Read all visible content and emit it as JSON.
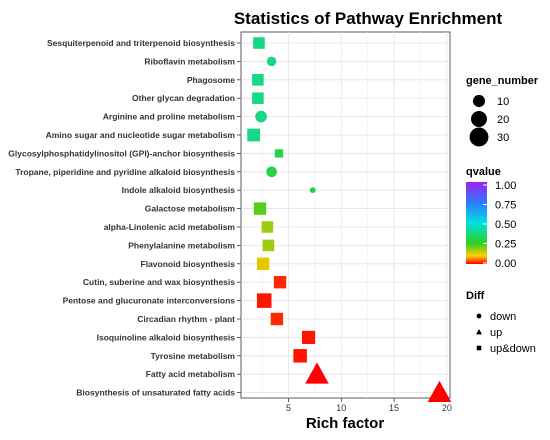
{
  "chart_data": {
    "type": "scatter",
    "title": "Statistics of Pathway Enrichment",
    "xlabel": "Rich factor",
    "ylabel": "",
    "xlim": [
      0.5,
      20.3
    ],
    "xticks": [
      "5",
      "10",
      "15",
      "20"
    ],
    "grid": true,
    "categories": [
      "Sesquiterpenoid and triterpenoid biosynthesis",
      "Riboflavin metabolism",
      "Phagosome",
      "Other glycan degradation",
      "Arginine and proline metabolism",
      "Amino sugar and nucleotide sugar metabolism",
      "Glycosylphosphatidylinositol (GPI)-anchor biosynthesis",
      "Tropane, piperidine and pyridine alkaloid biosynthesis",
      "Indole alkaloid biosynthesis",
      "Galactose metabolism",
      "alpha-Linolenic acid metabolism",
      "Phenylalanine metabolism",
      "Flavonoid biosynthesis",
      "Cutin, suberine and wax biosynthesis",
      "Pentose and glucuronate interconversions",
      "Circadian rhythm - plant",
      "Isoquinoline alkaloid biosynthesis",
      "Tyrosine metabolism",
      "Fatty acid metabolism",
      "Biosynthesis of unsaturated fatty acids"
    ],
    "points": [
      {
        "rich_factor": 2.2,
        "gene_number": 10,
        "qvalue": 0.38,
        "diff": "up&down"
      },
      {
        "rich_factor": 3.4,
        "gene_number": 5,
        "qvalue": 0.38,
        "diff": "down"
      },
      {
        "rich_factor": 2.1,
        "gene_number": 10,
        "qvalue": 0.38,
        "diff": "up&down"
      },
      {
        "rich_factor": 2.1,
        "gene_number": 10,
        "qvalue": 0.38,
        "diff": "up&down"
      },
      {
        "rich_factor": 2.4,
        "gene_number": 9,
        "qvalue": 0.38,
        "diff": "down"
      },
      {
        "rich_factor": 1.7,
        "gene_number": 13,
        "qvalue": 0.38,
        "diff": "up&down"
      },
      {
        "rich_factor": 4.1,
        "gene_number": 4,
        "qvalue": 0.3,
        "diff": "up&down"
      },
      {
        "rich_factor": 3.4,
        "gene_number": 7,
        "qvalue": 0.3,
        "diff": "down"
      },
      {
        "rich_factor": 7.3,
        "gene_number": 1,
        "qvalue": 0.3,
        "diff": "down"
      },
      {
        "rich_factor": 2.3,
        "gene_number": 12,
        "qvalue": 0.22,
        "diff": "up&down"
      },
      {
        "rich_factor": 3.0,
        "gene_number": 10,
        "qvalue": 0.17,
        "diff": "up&down"
      },
      {
        "rich_factor": 3.1,
        "gene_number": 10,
        "qvalue": 0.17,
        "diff": "up&down"
      },
      {
        "rich_factor": 2.6,
        "gene_number": 12,
        "qvalue": 0.12,
        "diff": "up&down"
      },
      {
        "rich_factor": 4.2,
        "gene_number": 12,
        "qvalue": 0.02,
        "diff": "up&down"
      },
      {
        "rich_factor": 2.7,
        "gene_number": 18,
        "qvalue": 0.01,
        "diff": "up&down"
      },
      {
        "rich_factor": 3.9,
        "gene_number": 12,
        "qvalue": 0.02,
        "diff": "up&down"
      },
      {
        "rich_factor": 6.9,
        "gene_number": 14,
        "qvalue": 0.01,
        "diff": "up&down"
      },
      {
        "rich_factor": 6.1,
        "gene_number": 15,
        "qvalue": 0.01,
        "diff": "up&down"
      },
      {
        "rich_factor": 7.7,
        "gene_number": 30,
        "qvalue": 0.0,
        "diff": "up"
      },
      {
        "rich_factor": 19.3,
        "gene_number": 30,
        "qvalue": 0.0,
        "diff": "up"
      }
    ],
    "legend": {
      "placement": "right",
      "size": {
        "title": "gene_number",
        "values": [
          10,
          20,
          30
        ],
        "labels": [
          "10",
          "20",
          "30"
        ]
      },
      "color": {
        "title": "qvalue",
        "labels": [
          "1.00",
          "0.75",
          "0.50",
          "0.25",
          "0.00"
        ],
        "stops": [
          "#a020f0",
          "#2b7bff",
          "#00e0e0",
          "#30d020",
          "#ffd000",
          "#ff0000"
        ]
      },
      "shape": {
        "title": "Diff",
        "items": [
          {
            "label": "down",
            "shape": "circle"
          },
          {
            "label": "up",
            "shape": "triangle"
          },
          {
            "label": "up&down",
            "shape": "square"
          }
        ]
      }
    }
  }
}
